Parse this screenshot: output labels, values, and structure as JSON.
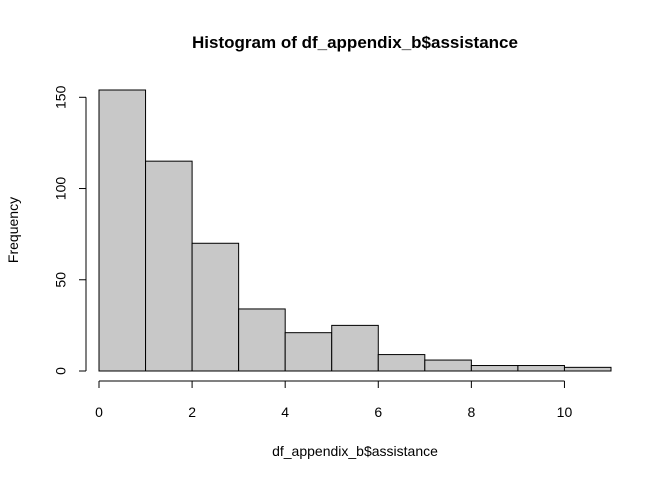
{
  "chart_data": {
    "type": "bar",
    "subtype": "histogram",
    "title": "Histogram of df_appendix_b$assistance",
    "xlabel": "df_appendix_b$assistance",
    "ylabel": "Frequency",
    "bins": [
      {
        "start": 0,
        "end": 1,
        "value": 154
      },
      {
        "start": 1,
        "end": 2,
        "value": 115
      },
      {
        "start": 2,
        "end": 3,
        "value": 70
      },
      {
        "start": 3,
        "end": 4,
        "value": 34
      },
      {
        "start": 4,
        "end": 5,
        "value": 21
      },
      {
        "start": 5,
        "end": 6,
        "value": 25
      },
      {
        "start": 6,
        "end": 7,
        "value": 9
      },
      {
        "start": 7,
        "end": 8,
        "value": 6
      },
      {
        "start": 8,
        "end": 9,
        "value": 3
      },
      {
        "start": 9,
        "end": 10,
        "value": 3
      },
      {
        "start": 10,
        "end": 11,
        "value": 2
      }
    ],
    "xlim": [
      0,
      11
    ],
    "ylim": [
      0,
      154
    ],
    "xticks": [
      0,
      2,
      4,
      6,
      8,
      10
    ],
    "xtick_labels": [
      "0",
      "2",
      "4",
      "6",
      "8",
      "10"
    ],
    "yticks": [
      0,
      50,
      100,
      150
    ],
    "ytick_labels": [
      "0",
      "50",
      "100",
      "150"
    ],
    "grid": false,
    "colors": {
      "bar_fill": "#c8c8c8",
      "bar_stroke": "#000000"
    }
  }
}
